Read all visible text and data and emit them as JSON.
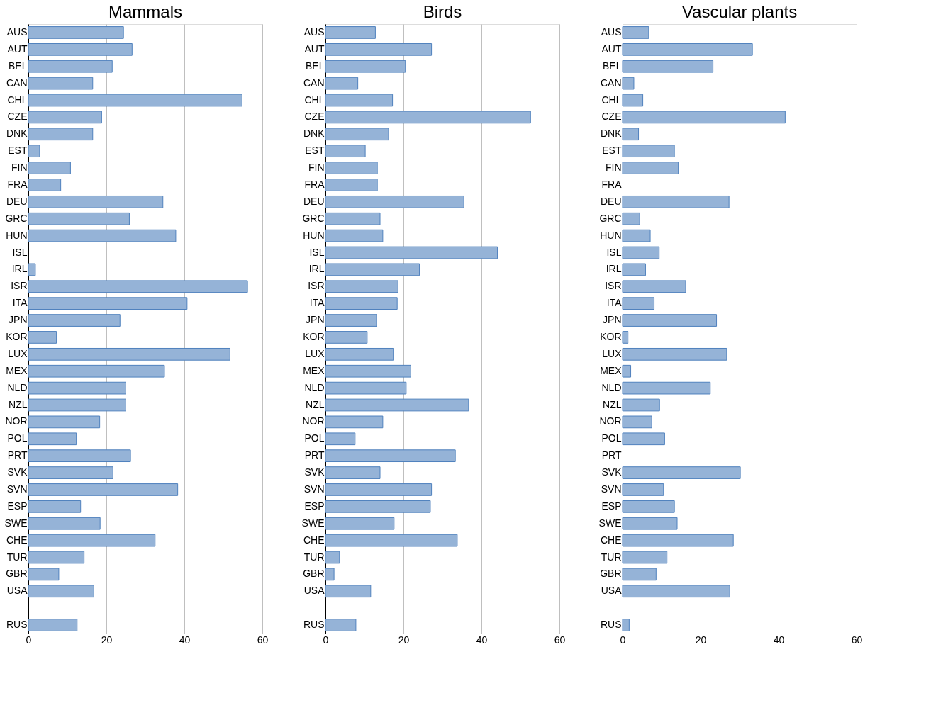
{
  "chart_data": [
    {
      "type": "bar",
      "orientation": "horizontal",
      "title": "Mammals",
      "color": "#95b3d7",
      "xlim": [
        0,
        60
      ],
      "xticks": [
        0,
        20,
        40,
        60
      ],
      "grid": "x",
      "categories": [
        "AUS",
        "AUT",
        "BEL",
        "CAN",
        "CHL",
        "CZE",
        "DNK",
        "EST",
        "FIN",
        "FRA",
        "DEU",
        "GRC",
        "HUN",
        "ISL",
        "IRL",
        "ISR",
        "ITA",
        "JPN",
        "KOR",
        "LUX",
        "MEX",
        "NLD",
        "NZL",
        "NOR",
        "POL",
        "PRT",
        "SVK",
        "SVN",
        "ESP",
        "SWE",
        "CHE",
        "TUR",
        "GBR",
        "USA",
        null,
        "RUS"
      ],
      "values": [
        24.4,
        26.6,
        21.5,
        16.5,
        54.8,
        18.8,
        16.5,
        2.9,
        10.8,
        8.3,
        34.5,
        25.9,
        37.8,
        null,
        1.8,
        56.2,
        40.7,
        23.5,
        7.2,
        51.7,
        34.9,
        25,
        25,
        18.3,
        12.3,
        26.2,
        21.7,
        38.3,
        13.4,
        18.4,
        32.5,
        14.3,
        7.8,
        16.8,
        null,
        12.5
      ]
    },
    {
      "type": "bar",
      "orientation": "horizontal",
      "title": "Birds",
      "color": "#95b3d7",
      "xlim": [
        0,
        60
      ],
      "xticks": [
        0,
        20,
        40,
        60
      ],
      "grid": "x",
      "categories": [
        "AUS",
        "AUT",
        "BEL",
        "CAN",
        "CHL",
        "CZE",
        "DNK",
        "EST",
        "FIN",
        "FRA",
        "DEU",
        "GRC",
        "HUN",
        "ISL",
        "IRL",
        "ISR",
        "ITA",
        "JPN",
        "KOR",
        "LUX",
        "MEX",
        "NLD",
        "NZL",
        "NOR",
        "POL",
        "PRT",
        "SVK",
        "SVN",
        "ESP",
        "SWE",
        "CHE",
        "TUR",
        "GBR",
        "USA",
        null,
        "RUS"
      ],
      "values": [
        12.8,
        27.2,
        20.5,
        8.3,
        17.2,
        52.6,
        16.2,
        10.2,
        13.3,
        13.3,
        35.5,
        14,
        14.7,
        44.1,
        24.1,
        18.6,
        18.4,
        13.1,
        10.7,
        17.4,
        21.9,
        20.7,
        36.7,
        14.7,
        7.6,
        33.3,
        14,
        27.2,
        26.9,
        17.6,
        33.8,
        3.6,
        2.2,
        11.6,
        null,
        7.8
      ]
    },
    {
      "type": "bar",
      "orientation": "horizontal",
      "title": "Vascular plants",
      "color": "#95b3d7",
      "xlim": [
        0,
        60
      ],
      "xticks": [
        0,
        20,
        40,
        60
      ],
      "grid": "x",
      "categories": [
        "AUS",
        "AUT",
        "BEL",
        "CAN",
        "CHL",
        "CZE",
        "DNK",
        "EST",
        "FIN",
        "FRA",
        "DEU",
        "GRC",
        "HUN",
        "ISL",
        "IRL",
        "ISR",
        "ITA",
        "JPN",
        "KOR",
        "LUX",
        "MEX",
        "NLD",
        "NZL",
        "NOR",
        "POL",
        "PRT",
        "SVK",
        "SVN",
        "ESP",
        "SWE",
        "CHE",
        "TUR",
        "GBR",
        "USA",
        null,
        "RUS"
      ],
      "values": [
        6.7,
        33.3,
        23.2,
        2.9,
        5.2,
        41.7,
        4.1,
        13.3,
        14.3,
        null,
        27.3,
        4.4,
        7.1,
        9.4,
        5.9,
        16.2,
        8.1,
        24.1,
        1.4,
        26.7,
        2.1,
        22.5,
        9.5,
        7.5,
        10.8,
        null,
        30.2,
        10.5,
        13.3,
        14,
        28.4,
        11.4,
        8.6,
        27.5,
        null,
        1.7
      ]
    }
  ]
}
